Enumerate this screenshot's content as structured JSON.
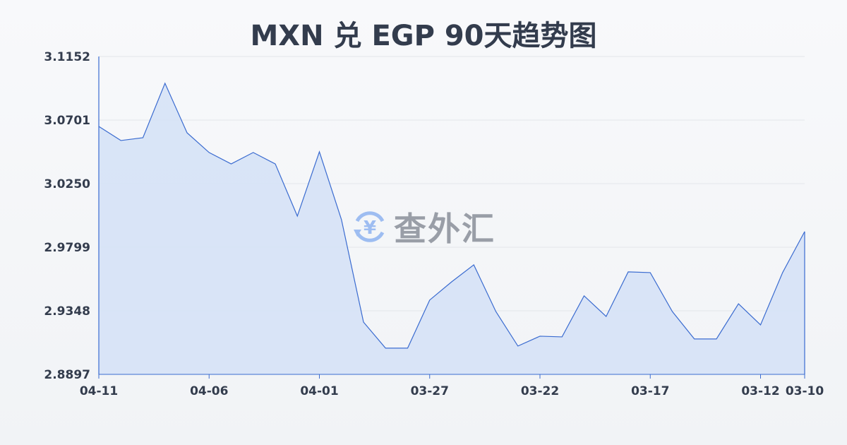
{
  "chart_data": {
    "type": "area",
    "title": "MXN 兑 EGP 90天趋势图",
    "xlabel": "",
    "ylabel": "",
    "ylim": [
      2.8897,
      3.1152
    ],
    "yticks": [
      "3.1152",
      "3.0701",
      "3.0250",
      "2.9799",
      "2.9348",
      "2.8897"
    ],
    "xtick_labels": [
      "04-11",
      "04-06",
      "04-01",
      "03-27",
      "03-22",
      "03-17",
      "03-12",
      "03-10"
    ],
    "grid": true,
    "x": [
      "04-11",
      "04-10",
      "04-09",
      "04-08",
      "04-07",
      "04-06",
      "04-05",
      "04-04",
      "04-03",
      "04-02",
      "04-01",
      "03-31",
      "03-30",
      "03-29",
      "03-28",
      "03-27",
      "03-26",
      "03-25",
      "03-24",
      "03-23",
      "03-22",
      "03-21",
      "03-20",
      "03-19",
      "03-18",
      "03-17",
      "03-16",
      "03-15",
      "03-14",
      "03-13",
      "03-12",
      "03-11",
      "03-10"
    ],
    "values": [
      3.0656,
      3.0556,
      3.0576,
      3.0962,
      3.0611,
      3.0471,
      3.039,
      3.0471,
      3.039,
      3.002,
      3.0476,
      2.9995,
      2.9268,
      2.9083,
      2.9083,
      2.9424,
      2.9554,
      2.9674,
      2.9343,
      2.9098,
      2.9168,
      2.9163,
      2.9454,
      2.9308,
      2.9624,
      2.9619,
      2.9343,
      2.9148,
      2.9148,
      2.9398,
      2.9248,
      2.9619,
      2.991
    ],
    "colors": {
      "line": "#3a6bd0",
      "fill": "#d6e2f6",
      "grid": "#e3e6ea",
      "text": "#333c4d"
    }
  },
  "watermark": {
    "text": "查外汇",
    "icon": "yen-exchange-icon"
  }
}
